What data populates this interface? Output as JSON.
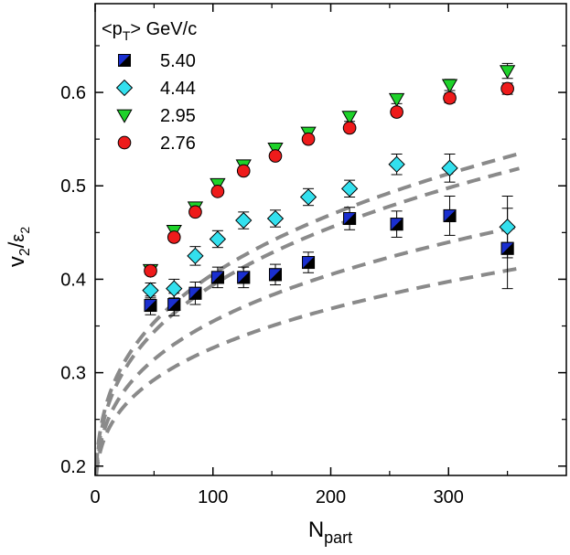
{
  "chart_data": {
    "type": "scatter",
    "title": "",
    "xlabel": {
      "main": "N",
      "sub": "part"
    },
    "ylabel": {
      "main": "v",
      "sub1": "2",
      "slash": "/",
      "eps": "ε",
      "sub2": "2"
    },
    "xlim": [
      0,
      400
    ],
    "ylim": [
      0.19,
      0.695
    ],
    "xticks": [
      0,
      100,
      200,
      300
    ],
    "xtick_labels": [
      "0",
      "100",
      "200",
      "300"
    ],
    "yticks": [
      0.2,
      0.3,
      0.4,
      0.5,
      0.6
    ],
    "ytick_labels": [
      "0.2",
      "0.3",
      "0.4",
      "0.5",
      "0.6"
    ],
    "legend": {
      "title": {
        "pre": "<p",
        "sub": "T",
        "post": "> GeV/c"
      },
      "placement": "top-left"
    },
    "series": [
      {
        "name": "5.40",
        "label": "5.40",
        "marker": "square-split",
        "color": "#1a2fd0",
        "color2": "#000000",
        "x": [
          47,
          67,
          85,
          104,
          126,
          153,
          181,
          216,
          256,
          301,
          350
        ],
        "y": [
          0.372,
          0.373,
          0.385,
          0.402,
          0.402,
          0.405,
          0.418,
          0.465,
          0.459,
          0.468,
          0.433
        ],
        "err": [
          0.01,
          0.012,
          0.012,
          0.011,
          0.011,
          0.011,
          0.011,
          0.012,
          0.014,
          0.021,
          0.043
        ]
      },
      {
        "name": "4.44",
        "label": "4.44",
        "marker": "diamond",
        "color": "#33e0ee",
        "x": [
          47,
          67,
          85,
          104,
          126,
          153,
          181,
          216,
          256,
          301,
          350
        ],
        "y": [
          0.388,
          0.39,
          0.425,
          0.443,
          0.463,
          0.465,
          0.488,
          0.497,
          0.523,
          0.519,
          0.456
        ],
        "err": [
          0.008,
          0.01,
          0.01,
          0.009,
          0.009,
          0.009,
          0.009,
          0.009,
          0.011,
          0.015,
          0.033
        ]
      },
      {
        "name": "2.95",
        "label": "2.95",
        "marker": "triangle-down",
        "color": "#1ed22a",
        "x": [
          47,
          67,
          85,
          104,
          126,
          153,
          181,
          216,
          256,
          301,
          350
        ],
        "y": [
          0.41,
          0.452,
          0.477,
          0.502,
          0.522,
          0.54,
          0.557,
          0.574,
          0.593,
          0.608,
          0.623
        ],
        "err": [
          0.005,
          0.005,
          0.005,
          0.005,
          0.005,
          0.005,
          0.005,
          0.005,
          0.005,
          0.006,
          0.008
        ]
      },
      {
        "name": "2.76",
        "label": "2.76",
        "marker": "circle",
        "color": "#ee1b1b",
        "x": [
          47,
          67,
          85,
          104,
          126,
          153,
          181,
          216,
          256,
          301,
          350
        ],
        "y": [
          0.409,
          0.445,
          0.472,
          0.494,
          0.516,
          0.532,
          0.55,
          0.562,
          0.579,
          0.594,
          0.604
        ],
        "err": [
          0.004,
          0.004,
          0.004,
          0.004,
          0.004,
          0.004,
          0.004,
          0.004,
          0.004,
          0.005,
          0.006
        ]
      }
    ],
    "fit_curves": [
      {
        "name": "fit-2.95",
        "a": 0.1995,
        "b": 0.3315,
        "color": "#8a8a8a"
      },
      {
        "name": "fit-2.76",
        "a": 0.1945,
        "b": 0.3208,
        "color": "#8a8a8a"
      },
      {
        "name": "fit-4.44",
        "a": 0.1925,
        "b": 0.2614,
        "color": "#8a8a8a"
      },
      {
        "name": "fit-5.40",
        "a": 0.1905,
        "b": 0.2189,
        "color": "#8a8a8a"
      }
    ],
    "fit_x_range": [
      1,
      360
    ]
  }
}
